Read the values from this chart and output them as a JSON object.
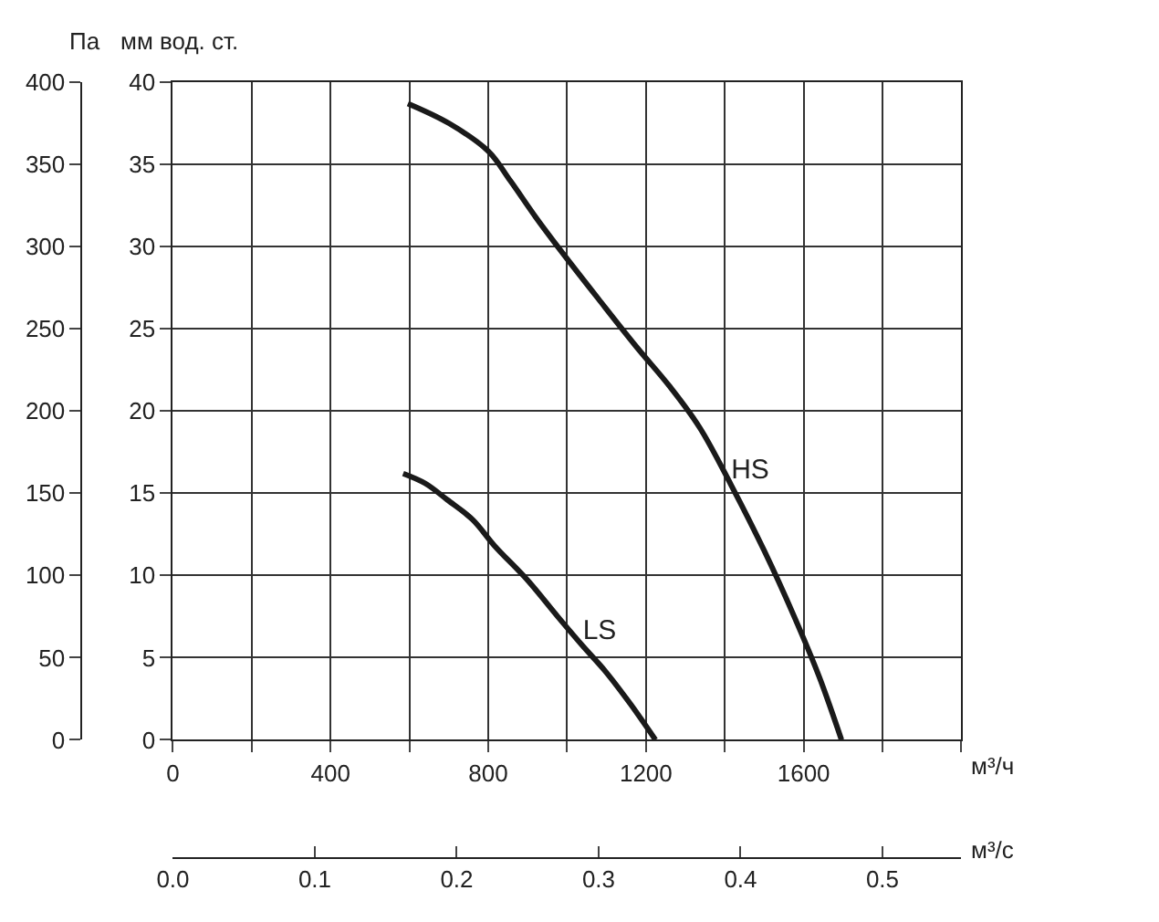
{
  "chart_data": {
    "type": "line",
    "ylabel": "Па",
    "y2label": "мм вод. ст.",
    "xlabel": "м³/ч",
    "x2label": "м³/с",
    "series": [
      {
        "name": "HS",
        "color": "#1a1a1a",
        "x": [
          596,
          700,
          800,
          856,
          920,
          976,
          1080,
          1176,
          1260,
          1336,
          1416,
          1500,
          1576,
          1640,
          1696
        ],
        "values": [
          387,
          375,
          358,
          340,
          318,
          300,
          268,
          239,
          215,
          190,
          155,
          115,
          75,
          38,
          0
        ]
      },
      {
        "name": "LS",
        "color": "#1a1a1a",
        "x": [
          584,
          640,
          696,
          760,
          816,
          900,
          976,
          1040,
          1096,
          1160,
          1224
        ],
        "values": [
          162,
          156,
          146,
          134,
          118,
          97,
          75,
          57,
          42,
          22,
          0
        ]
      }
    ],
    "xlim": [
      0,
      2000
    ],
    "xticks": [
      0,
      {
        "value": 200,
        "label": null
      },
      400,
      {
        "value": 600,
        "label": null
      },
      800,
      {
        "value": 1000,
        "label": null
      },
      1200,
      {
        "value": 1400,
        "label": null
      },
      1600,
      {
        "value": 1800,
        "label": null
      },
      {
        "value": 2000,
        "label": null
      }
    ],
    "x2lim": [
      0,
      0.5556
    ],
    "x2ticks": [
      {
        "value": 0,
        "label": "0.0"
      },
      0.1,
      0.2,
      0.3,
      0.4,
      0.5
    ],
    "ylim": [
      0,
      400
    ],
    "yticks": [
      0,
      50,
      100,
      150,
      200,
      250,
      300,
      350,
      400
    ],
    "y2lim": [
      0,
      40
    ],
    "y2ticks": [
      0,
      5,
      10,
      15,
      20,
      25,
      30,
      35,
      40
    ],
    "grid": true,
    "legend": false,
    "line_style": "solid",
    "marker": "none"
  }
}
